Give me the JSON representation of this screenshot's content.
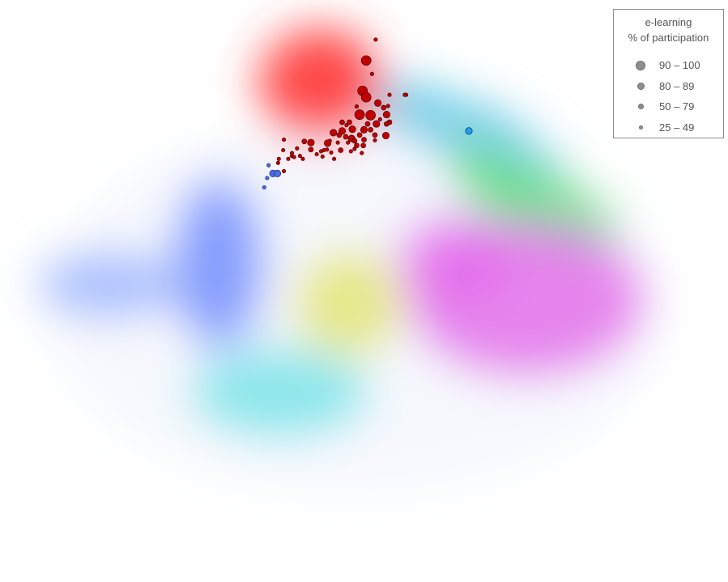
{
  "chart_data": {
    "type": "scatter",
    "title": "",
    "xlabel": "",
    "ylabel": "",
    "grid": false,
    "legend_placement": "top-right",
    "legend": {
      "title_line1": "e-learning",
      "title_line2": "% of participation",
      "entries": [
        {
          "label": "90 – 100",
          "level": 4
        },
        {
          "label": "80 – 89",
          "level": 3
        },
        {
          "label": "50 – 79",
          "level": 2
        },
        {
          "label": "25 – 49",
          "level": 1
        }
      ]
    },
    "background_clusters": [
      {
        "name": "red",
        "color": "#ff2a2a",
        "cx": 0.44,
        "cy": 0.16
      },
      {
        "name": "blue",
        "color": "#3f6bff",
        "cx": 0.27,
        "cy": 0.48
      },
      {
        "name": "light-blue",
        "color": "#6f8fff",
        "cx": 0.11,
        "cy": 0.49
      },
      {
        "name": "cyan",
        "color": "#3fdcdc",
        "cx": 0.38,
        "cy": 0.68
      },
      {
        "name": "yellow",
        "color": "#dde030",
        "cx": 0.48,
        "cy": 0.53
      },
      {
        "name": "magenta",
        "color": "#e020e0",
        "cx": 0.72,
        "cy": 0.52
      },
      {
        "name": "green",
        "color": "#1ccc3a",
        "cx": 0.75,
        "cy": 0.36
      },
      {
        "name": "sky",
        "color": "#3bb8e0",
        "cx": 0.62,
        "cy": 0.19
      }
    ],
    "series": [
      {
        "color": "#c00000",
        "points": [
          [
            0.516,
            0.068,
            1
          ],
          [
            0.503,
            0.104,
            4
          ],
          [
            0.511,
            0.127,
            1
          ],
          [
            0.498,
            0.156,
            4
          ],
          [
            0.503,
            0.167,
            4
          ],
          [
            0.519,
            0.177,
            3
          ],
          [
            0.533,
            0.182,
            1
          ],
          [
            0.558,
            0.163,
            1
          ],
          [
            0.535,
            0.163,
            1
          ],
          [
            0.527,
            0.185,
            2
          ],
          [
            0.494,
            0.197,
            4
          ],
          [
            0.509,
            0.198,
            4
          ],
          [
            0.531,
            0.197,
            3
          ],
          [
            0.535,
            0.21,
            2
          ],
          [
            0.522,
            0.205,
            1
          ],
          [
            0.48,
            0.21,
            2
          ],
          [
            0.505,
            0.213,
            2
          ],
          [
            0.517,
            0.213,
            3
          ],
          [
            0.47,
            0.21,
            2
          ],
          [
            0.47,
            0.225,
            3
          ],
          [
            0.484,
            0.222,
            3
          ],
          [
            0.5,
            0.223,
            3
          ],
          [
            0.509,
            0.223,
            2
          ],
          [
            0.458,
            0.228,
            3
          ],
          [
            0.466,
            0.232,
            2
          ],
          [
            0.475,
            0.235,
            2
          ],
          [
            0.494,
            0.232,
            2
          ],
          [
            0.515,
            0.232,
            2
          ],
          [
            0.531,
            0.213,
            2
          ],
          [
            0.53,
            0.232,
            2
          ],
          [
            0.483,
            0.238,
            3
          ],
          [
            0.5,
            0.24,
            2
          ],
          [
            0.453,
            0.242,
            1
          ],
          [
            0.464,
            0.245,
            1
          ],
          [
            0.478,
            0.245,
            1
          ],
          [
            0.487,
            0.242,
            2
          ],
          [
            0.515,
            0.241,
            1
          ],
          [
            0.53,
            0.233,
            3
          ],
          [
            0.418,
            0.243,
            2
          ],
          [
            0.427,
            0.245,
            3
          ],
          [
            0.45,
            0.246,
            3
          ],
          [
            0.49,
            0.25,
            2
          ],
          [
            0.499,
            0.25,
            2
          ],
          [
            0.487,
            0.256,
            1
          ],
          [
            0.408,
            0.255,
            1
          ],
          [
            0.427,
            0.257,
            2
          ],
          [
            0.441,
            0.26,
            1
          ],
          [
            0.468,
            0.258,
            2
          ],
          [
            0.482,
            0.26,
            1
          ],
          [
            0.497,
            0.263,
            1
          ],
          [
            0.389,
            0.258,
            1
          ],
          [
            0.401,
            0.263,
            1
          ],
          [
            0.455,
            0.262,
            1
          ],
          [
            0.396,
            0.273,
            1
          ],
          [
            0.416,
            0.273,
            1
          ],
          [
            0.459,
            0.273,
            1
          ],
          [
            0.449,
            0.257,
            1
          ],
          [
            0.443,
            0.269,
            1
          ],
          [
            0.435,
            0.265,
            1
          ],
          [
            0.39,
            0.24,
            1
          ],
          [
            0.412,
            0.268,
            1
          ],
          [
            0.383,
            0.273,
            1
          ],
          [
            0.401,
            0.268,
            1
          ],
          [
            0.404,
            0.27,
            1
          ],
          [
            0.382,
            0.28,
            1
          ],
          [
            0.39,
            0.294,
            1
          ],
          [
            0.445,
            0.258,
            1
          ],
          [
            0.556,
            0.163,
            1
          ],
          [
            0.49,
            0.183,
            1
          ],
          [
            0.476,
            0.215,
            1
          ]
        ]
      },
      {
        "color": "#4a6fe8",
        "points": [
          [
            0.369,
            0.284,
            1
          ],
          [
            0.375,
            0.298,
            3
          ],
          [
            0.381,
            0.298,
            3
          ],
          [
            0.367,
            0.306,
            1
          ],
          [
            0.363,
            0.322,
            1
          ]
        ]
      },
      {
        "color": "#1ea0e6",
        "points": [
          [
            0.644,
            0.225,
            3
          ]
        ]
      }
    ]
  }
}
